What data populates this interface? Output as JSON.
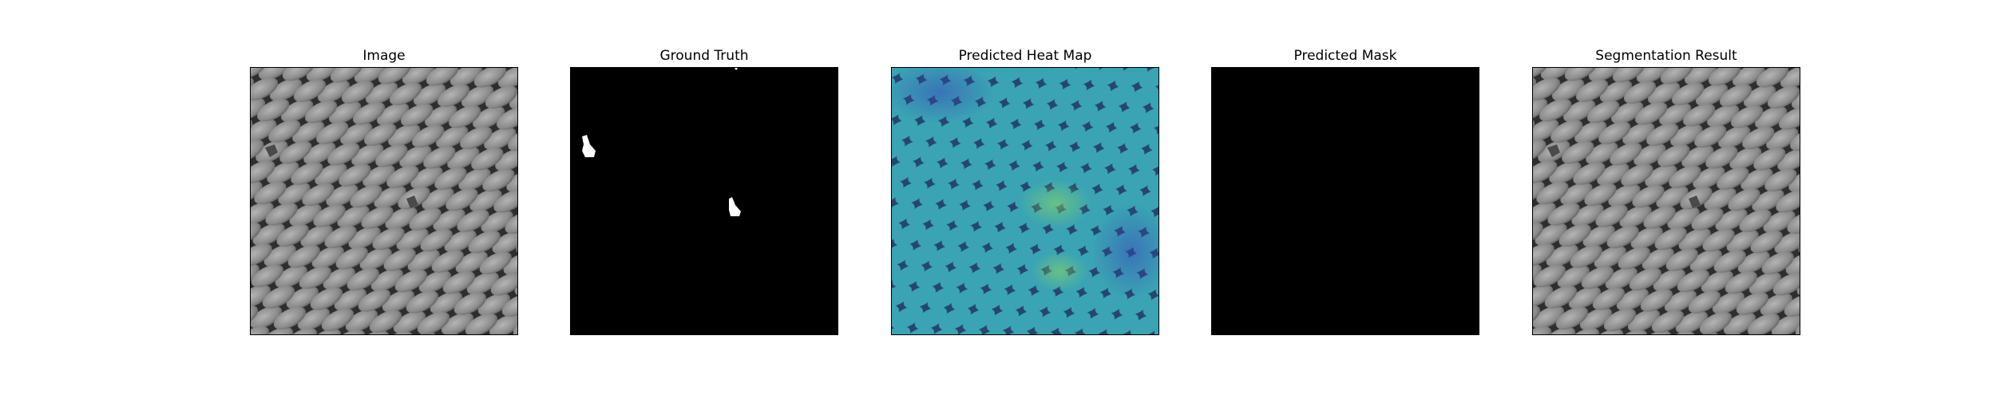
{
  "panels": [
    {
      "title": "Image"
    },
    {
      "title": "Ground Truth"
    },
    {
      "title": "Predicted Heat Map"
    },
    {
      "title": "Predicted Mask"
    },
    {
      "title": "Segmentation Result"
    }
  ],
  "colors": {
    "mesh_background": "#2e2e2e",
    "mesh_cell": "#8c8c8c",
    "mask_background": "#000000",
    "mask_foreground": "#ffffff",
    "heat_low": "#3b5bbf",
    "heat_mid": "#35b6b0",
    "heat_high": "#7fd35a"
  }
}
